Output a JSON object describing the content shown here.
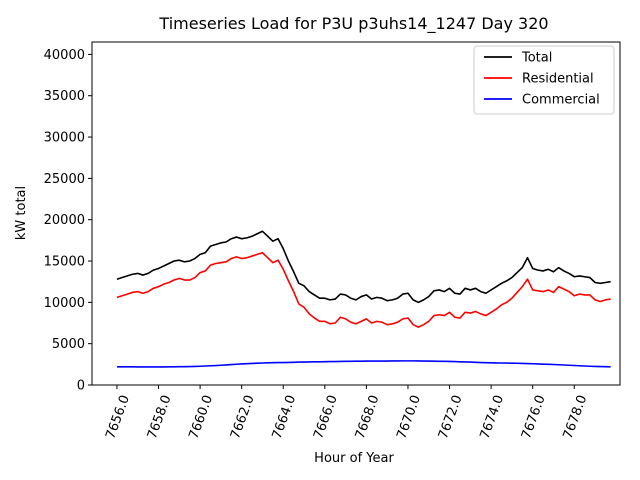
{
  "chart_data": {
    "type": "line",
    "title": "Timeseries Load for P3U p3uhs14_1247  Day 320",
    "xlabel": "Hour of Year",
    "ylabel": "kW total",
    "xlim": [
      7654.8,
      7680.2
    ],
    "ylim": [
      0,
      41500
    ],
    "x_ticks": [
      7656,
      7658,
      7660,
      7662,
      7664,
      7666,
      7668,
      7670,
      7672,
      7674,
      7676,
      7678
    ],
    "x_tick_labels": [
      "7656.0",
      "7658.0",
      "7660.0",
      "7662.0",
      "7664.0",
      "7666.0",
      "7668.0",
      "7670.0",
      "7672.0",
      "7674.0",
      "7676.0",
      "7678.0"
    ],
    "y_ticks": [
      0,
      5000,
      10000,
      15000,
      20000,
      25000,
      30000,
      35000,
      40000
    ],
    "y_tick_labels": [
      "0",
      "5000",
      "10000",
      "15000",
      "20000",
      "25000",
      "30000",
      "35000",
      "40000"
    ],
    "grid": false,
    "legend_position": "top-right",
    "x_start": 7656,
    "x_step": 0.25,
    "series": [
      {
        "name": "Total",
        "color": "#000000",
        "values": [
          12800,
          13000,
          13200,
          13400,
          13500,
          13300,
          13500,
          13900,
          14100,
          14400,
          14700,
          15000,
          15100,
          14900,
          15000,
          15300,
          15800,
          16000,
          16800,
          17000,
          17200,
          17300,
          17700,
          17900,
          17700,
          17800,
          18000,
          18300,
          18600,
          18000,
          17400,
          17700,
          16500,
          15000,
          13700,
          12300,
          12000,
          11300,
          10900,
          10500,
          10500,
          10300,
          10400,
          11000,
          10900,
          10500,
          10300,
          10700,
          10900,
          10400,
          10600,
          10500,
          10200,
          10300,
          10500,
          11000,
          11100,
          10300,
          10000,
          10300,
          10700,
          11400,
          11500,
          11300,
          11700,
          11100,
          11000,
          11700,
          11500,
          11700,
          11300,
          11100,
          11500,
          11900,
          12300,
          12600,
          13000,
          13600,
          14200,
          15400,
          14100,
          13900,
          13800,
          14000,
          13700,
          14200,
          13800,
          13500,
          13100,
          13200,
          13100,
          13000,
          12400,
          12300,
          12400,
          12500
        ]
      },
      {
        "name": "Residential",
        "color": "#ff0000",
        "values": [
          10600,
          10800,
          11000,
          11200,
          11300,
          11100,
          11300,
          11700,
          11900,
          12200,
          12400,
          12700,
          12900,
          12700,
          12700,
          13000,
          13600,
          13800,
          14500,
          14700,
          14800,
          14900,
          15300,
          15500,
          15300,
          15400,
          15600,
          15800,
          16000,
          15400,
          14800,
          15100,
          14000,
          12600,
          11300,
          9800,
          9400,
          8600,
          8100,
          7700,
          7700,
          7400,
          7500,
          8200,
          8000,
          7600,
          7400,
          7700,
          8000,
          7500,
          7700,
          7600,
          7300,
          7400,
          7600,
          8000,
          8100,
          7300,
          7000,
          7300,
          7700,
          8400,
          8500,
          8400,
          8800,
          8200,
          8100,
          8800,
          8700,
          8900,
          8600,
          8400,
          8800,
          9200,
          9700,
          10000,
          10500,
          11200,
          11900,
          12800,
          11500,
          11400,
          11300,
          11500,
          11200,
          11900,
          11600,
          11300,
          10800,
          11000,
          10900,
          10900,
          10300,
          10100,
          10300,
          10400
        ]
      },
      {
        "name": "Commercial",
        "color": "#0000ff",
        "values": [
          2200,
          2200,
          2200,
          2200,
          2180,
          2180,
          2180,
          2180,
          2190,
          2190,
          2200,
          2200,
          2210,
          2220,
          2230,
          2250,
          2270,
          2300,
          2330,
          2350,
          2390,
          2430,
          2470,
          2510,
          2550,
          2580,
          2610,
          2640,
          2660,
          2680,
          2700,
          2710,
          2720,
          2730,
          2750,
          2770,
          2780,
          2790,
          2800,
          2810,
          2820,
          2830,
          2840,
          2850,
          2860,
          2870,
          2880,
          2880,
          2890,
          2890,
          2890,
          2900,
          2900,
          2910,
          2910,
          2920,
          2920,
          2920,
          2910,
          2900,
          2890,
          2880,
          2870,
          2860,
          2850,
          2830,
          2810,
          2790,
          2770,
          2750,
          2720,
          2700,
          2680,
          2670,
          2660,
          2650,
          2640,
          2630,
          2610,
          2590,
          2570,
          2550,
          2520,
          2500,
          2480,
          2450,
          2420,
          2390,
          2360,
          2330,
          2300,
          2270,
          2250,
          2230,
          2210,
          2200
        ]
      }
    ]
  }
}
